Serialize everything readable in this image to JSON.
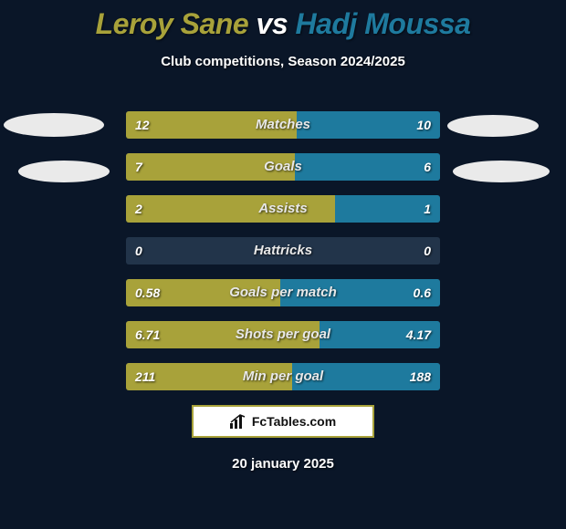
{
  "header": {
    "player1_name": "Leroy Sane",
    "player1_color": "#a8a23a",
    "vs_text": "vs",
    "vs_color": "#ffffff",
    "player2_name": "Hadj Moussa",
    "player2_color": "#1e7a9e",
    "subtitle": "Club competitions, Season 2024/2025"
  },
  "colors": {
    "background": "#0a1628",
    "bar_bg": "#22344a",
    "p1_fill": "#a8a23a",
    "p2_fill": "#1e7a9e",
    "badge_border": "#a8a23a"
  },
  "stats": [
    {
      "label": "Matches",
      "left_val": "12",
      "right_val": "10",
      "left_pct": 54.5,
      "right_pct": 45.5
    },
    {
      "label": "Goals",
      "left_val": "7",
      "right_val": "6",
      "left_pct": 53.8,
      "right_pct": 46.2
    },
    {
      "label": "Assists",
      "left_val": "2",
      "right_val": "1",
      "left_pct": 66.7,
      "right_pct": 33.3
    },
    {
      "label": "Hattricks",
      "left_val": "0",
      "right_val": "0",
      "left_pct": 0,
      "right_pct": 0
    },
    {
      "label": "Goals per match",
      "left_val": "0.58",
      "right_val": "0.6",
      "left_pct": 49.2,
      "right_pct": 50.8
    },
    {
      "label": "Shots per goal",
      "left_val": "6.71",
      "right_val": "4.17",
      "left_pct": 61.7,
      "right_pct": 38.3
    },
    {
      "label": "Min per goal",
      "left_val": "211",
      "right_val": "188",
      "left_pct": 52.9,
      "right_pct": 47.1
    }
  ],
  "footer": {
    "site_label": "FcTables.com",
    "date": "20 january 2025"
  }
}
